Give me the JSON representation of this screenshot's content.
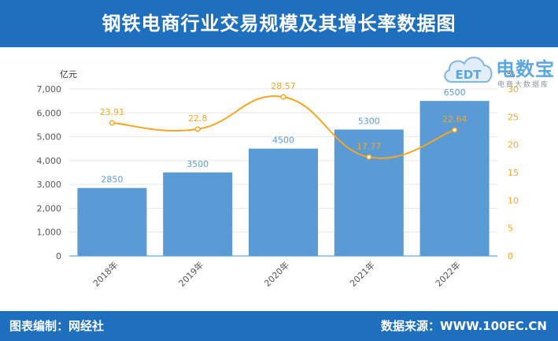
{
  "header": {
    "title": "钢铁电商行业交易规模及其增长率数据图"
  },
  "footer": {
    "left": "图表编制：网经社",
    "right": "数据来源：WWW.100EC.CN"
  },
  "watermark": {
    "brand": "电数宝",
    "tagline": "电商大数据库",
    "cloud_text": "EDT",
    "color": "#5da7e0"
  },
  "colors": {
    "bar": "#5b9bd5",
    "line": "#f5a623",
    "header": "#1f6fbf"
  },
  "chart_data": {
    "type": "bar",
    "categories": [
      "2018年",
      "2019年",
      "2020年",
      "2021年",
      "2022年"
    ],
    "series": [
      {
        "values": [
          2850,
          3500,
          4500,
          5300,
          6500
        ],
        "axis": "left",
        "kind": "bar",
        "labels": [
          "2850",
          "3500",
          "4500",
          "5300",
          "6500"
        ]
      },
      {
        "values": [
          23.91,
          22.8,
          28.57,
          17.77,
          22.64
        ],
        "axis": "right",
        "kind": "line-smooth",
        "labels": [
          "23.91",
          "22.8",
          "28.57",
          "17.77",
          "22.64"
        ]
      }
    ],
    "y_left": {
      "unit": "亿元",
      "range": [
        0,
        7000
      ],
      "ticks": [
        "0",
        "1,000",
        "2,000",
        "3,000",
        "4,000",
        "5,000",
        "6,000",
        "7,000"
      ]
    },
    "y_right": {
      "unit": "%",
      "range": [
        0,
        30
      ],
      "ticks": [
        "0",
        "5",
        "10",
        "15",
        "20",
        "25",
        "30"
      ]
    },
    "grid": true,
    "legend": "none"
  }
}
